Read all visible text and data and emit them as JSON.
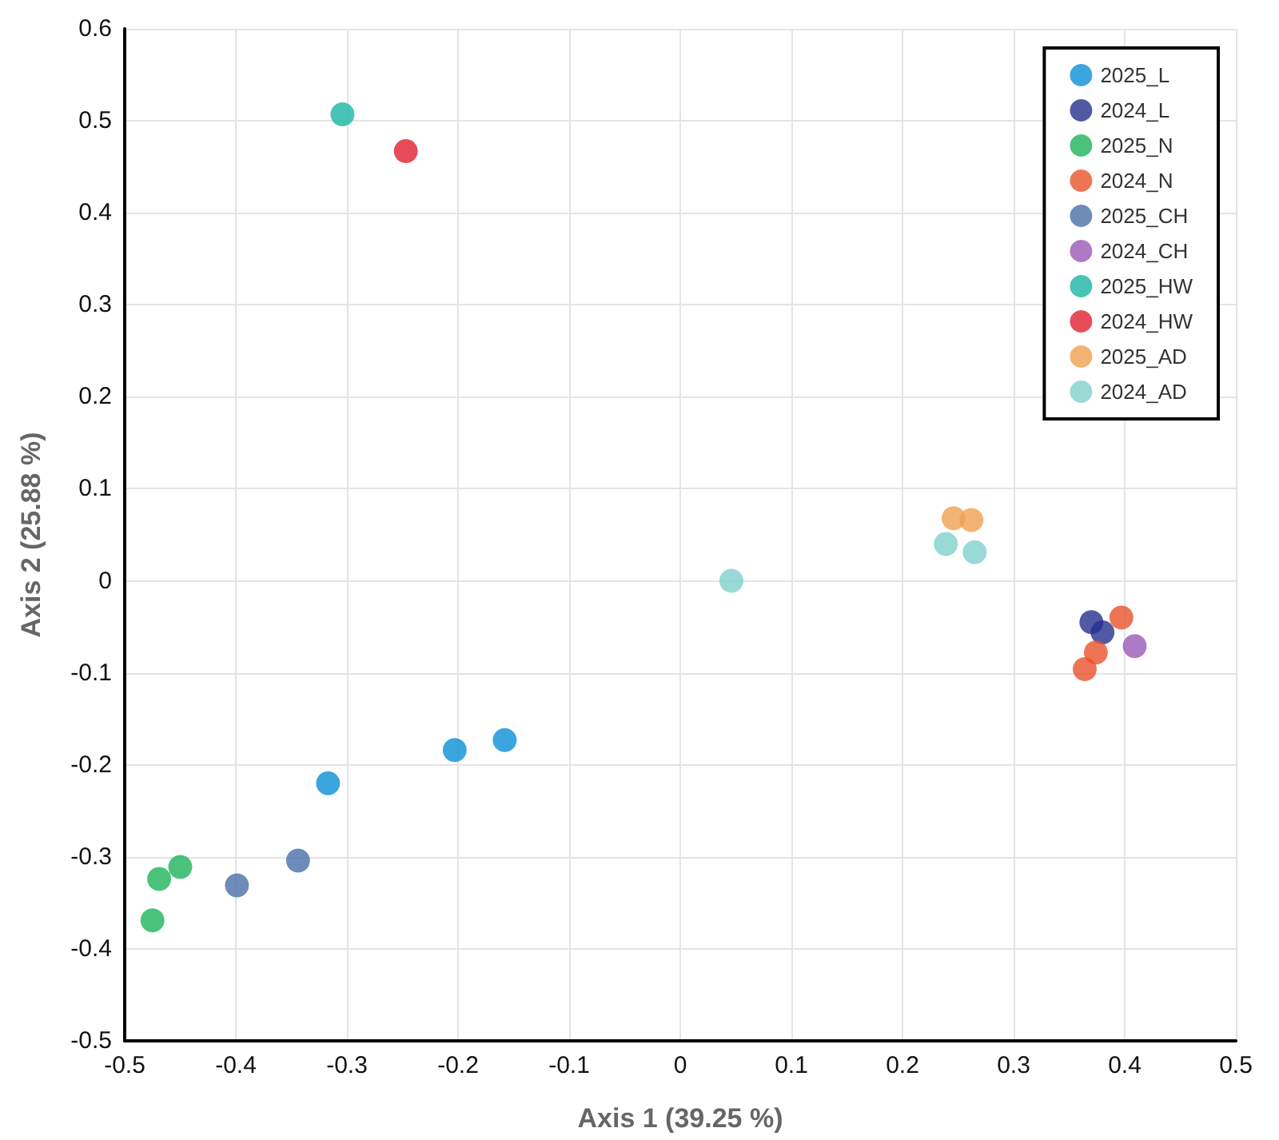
{
  "chart_data": {
    "type": "scatter",
    "xlabel": "Axis 1 (39.25 %)",
    "ylabel": "Axis 2 (25.88 %)",
    "xlim": [
      -0.5,
      0.5
    ],
    "xticks": [
      -0.5,
      -0.4,
      -0.3,
      -0.2,
      -0.1,
      0,
      0.1,
      0.2,
      0.3,
      0.4,
      0.5
    ],
    "ylim": [
      -0.5,
      0.6
    ],
    "yticks": [
      -0.5,
      -0.4,
      -0.3,
      -0.2,
      -0.1,
      0,
      0.1,
      0.2,
      0.3,
      0.4,
      0.5,
      0.6
    ],
    "grid": true,
    "legend": "top right",
    "marker": "circle",
    "series": [
      {
        "name": "2025_L",
        "color": "#0a8fd6",
        "x": [
          -0.317,
          -0.203,
          -0.158
        ],
        "values": [
          -0.22,
          -0.184,
          -0.173
        ]
      },
      {
        "name": "2024_L",
        "color": "#262f8f",
        "x": [
          0.37,
          0.38
        ],
        "values": [
          -0.045,
          -0.056
        ]
      },
      {
        "name": "2025_N",
        "color": "#1db35a",
        "x": [
          -0.469,
          -0.45,
          -0.475
        ],
        "values": [
          -0.324,
          -0.311,
          -0.369
        ]
      },
      {
        "name": "2024_N",
        "color": "#e8532a",
        "x": [
          0.397,
          0.374,
          0.364
        ],
        "values": [
          -0.04,
          -0.078,
          -0.096
        ]
      },
      {
        "name": "2025_CH",
        "color": "#4a6fa8",
        "x": [
          -0.399,
          -0.344
        ],
        "values": [
          -0.331,
          -0.304
        ]
      },
      {
        "name": "2024_CH",
        "color": "#9b59b6",
        "x": [
          0.409
        ],
        "values": [
          -0.071
        ]
      },
      {
        "name": "2025_HW",
        "color": "#1ab5a5",
        "x": [
          -0.304
        ],
        "values": [
          0.507
        ]
      },
      {
        "name": "2024_HW",
        "color": "#e02030",
        "x": [
          -0.247
        ],
        "values": [
          0.467
        ]
      },
      {
        "name": "2025_AD",
        "color": "#f0a050",
        "x": [
          0.246,
          0.262
        ],
        "values": [
          0.068,
          0.066
        ]
      },
      {
        "name": "2024_AD",
        "color": "#7fd0cc",
        "x": [
          0.239,
          0.265,
          0.046
        ],
        "values": [
          0.04,
          0.031,
          0
        ]
      }
    ]
  }
}
